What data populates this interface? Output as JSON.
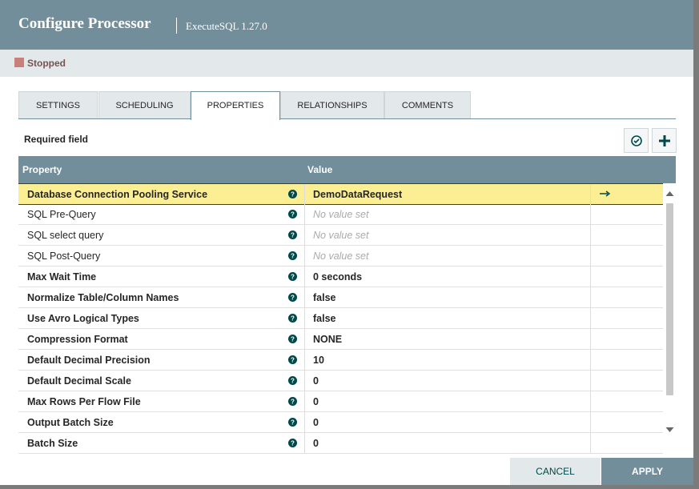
{
  "header": {
    "title": "Configure Processor",
    "subtitle": "ExecuteSQL 1.27.0"
  },
  "status": "Stopped",
  "tabs": [
    "SETTINGS",
    "SCHEDULING",
    "PROPERTIES",
    "RELATIONSHIPS",
    "COMMENTS"
  ],
  "active_tab_index": 2,
  "required_label": "Required field",
  "table": {
    "columns": [
      "Property",
      "Value"
    ],
    "rows": [
      {
        "name": "Database Connection Pooling Service",
        "value": "DemoDataRequest",
        "required": true,
        "selected": true,
        "unset": false
      },
      {
        "name": "SQL Pre-Query",
        "value": "No value set",
        "required": false,
        "selected": false,
        "unset": true
      },
      {
        "name": "SQL select query",
        "value": "No value set",
        "required": false,
        "selected": false,
        "unset": true
      },
      {
        "name": "SQL Post-Query",
        "value": "No value set",
        "required": false,
        "selected": false,
        "unset": true
      },
      {
        "name": "Max Wait Time",
        "value": "0 seconds",
        "required": true,
        "selected": false,
        "unset": false
      },
      {
        "name": "Normalize Table/Column Names",
        "value": "false",
        "required": true,
        "selected": false,
        "unset": false
      },
      {
        "name": "Use Avro Logical Types",
        "value": "false",
        "required": true,
        "selected": false,
        "unset": false
      },
      {
        "name": "Compression Format",
        "value": "NONE",
        "required": true,
        "selected": false,
        "unset": false
      },
      {
        "name": "Default Decimal Precision",
        "value": "10",
        "required": true,
        "selected": false,
        "unset": false
      },
      {
        "name": "Default Decimal Scale",
        "value": "0",
        "required": true,
        "selected": false,
        "unset": false
      },
      {
        "name": "Max Rows Per Flow File",
        "value": "0",
        "required": true,
        "selected": false,
        "unset": false
      },
      {
        "name": "Output Batch Size",
        "value": "0",
        "required": true,
        "selected": false,
        "unset": false
      },
      {
        "name": "Batch Size",
        "value": "0",
        "required": true,
        "selected": false,
        "unset": false
      }
    ]
  },
  "buttons": {
    "cancel": "CANCEL",
    "apply": "APPLY"
  }
}
